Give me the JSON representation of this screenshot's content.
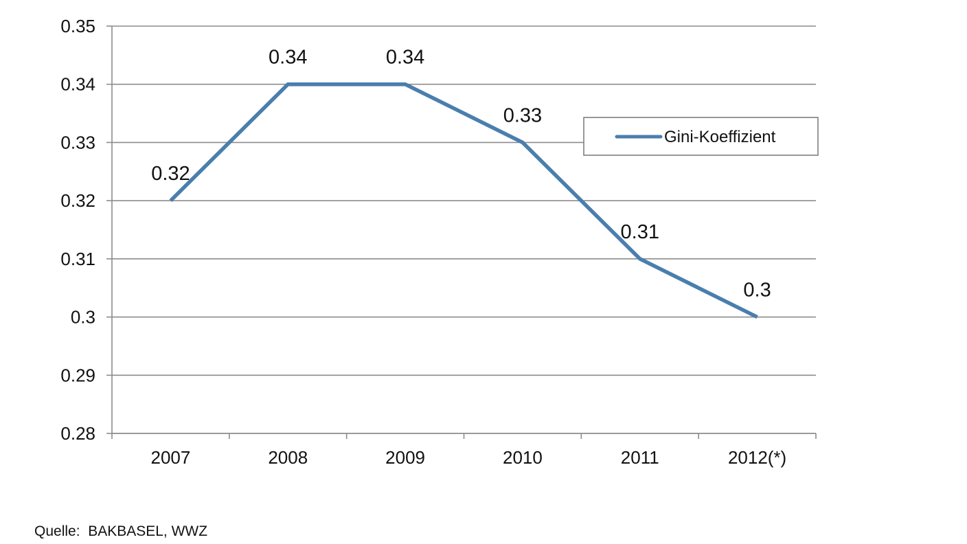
{
  "chart_data": {
    "type": "line",
    "categories": [
      "2007",
      "2008",
      "2009",
      "2010",
      "2011",
      "2012(*)"
    ],
    "series": [
      {
        "name": "Gini-Koeffizient",
        "values": [
          0.32,
          0.34,
          0.34,
          0.33,
          0.31,
          0.3
        ],
        "labels": [
          "0.32",
          "0.34",
          "0.34",
          "0.33",
          "0.31",
          "0.3"
        ],
        "color": "#4a7ead"
      }
    ],
    "ylim": [
      0.28,
      0.35
    ],
    "yticks": [
      "0.28",
      "0.29",
      "0.3",
      "0.31",
      "0.32",
      "0.33",
      "0.34",
      "0.35"
    ],
    "grid": true,
    "legend_position": "top-right"
  },
  "source": "Quelle:  BAKBASEL, WWZ"
}
